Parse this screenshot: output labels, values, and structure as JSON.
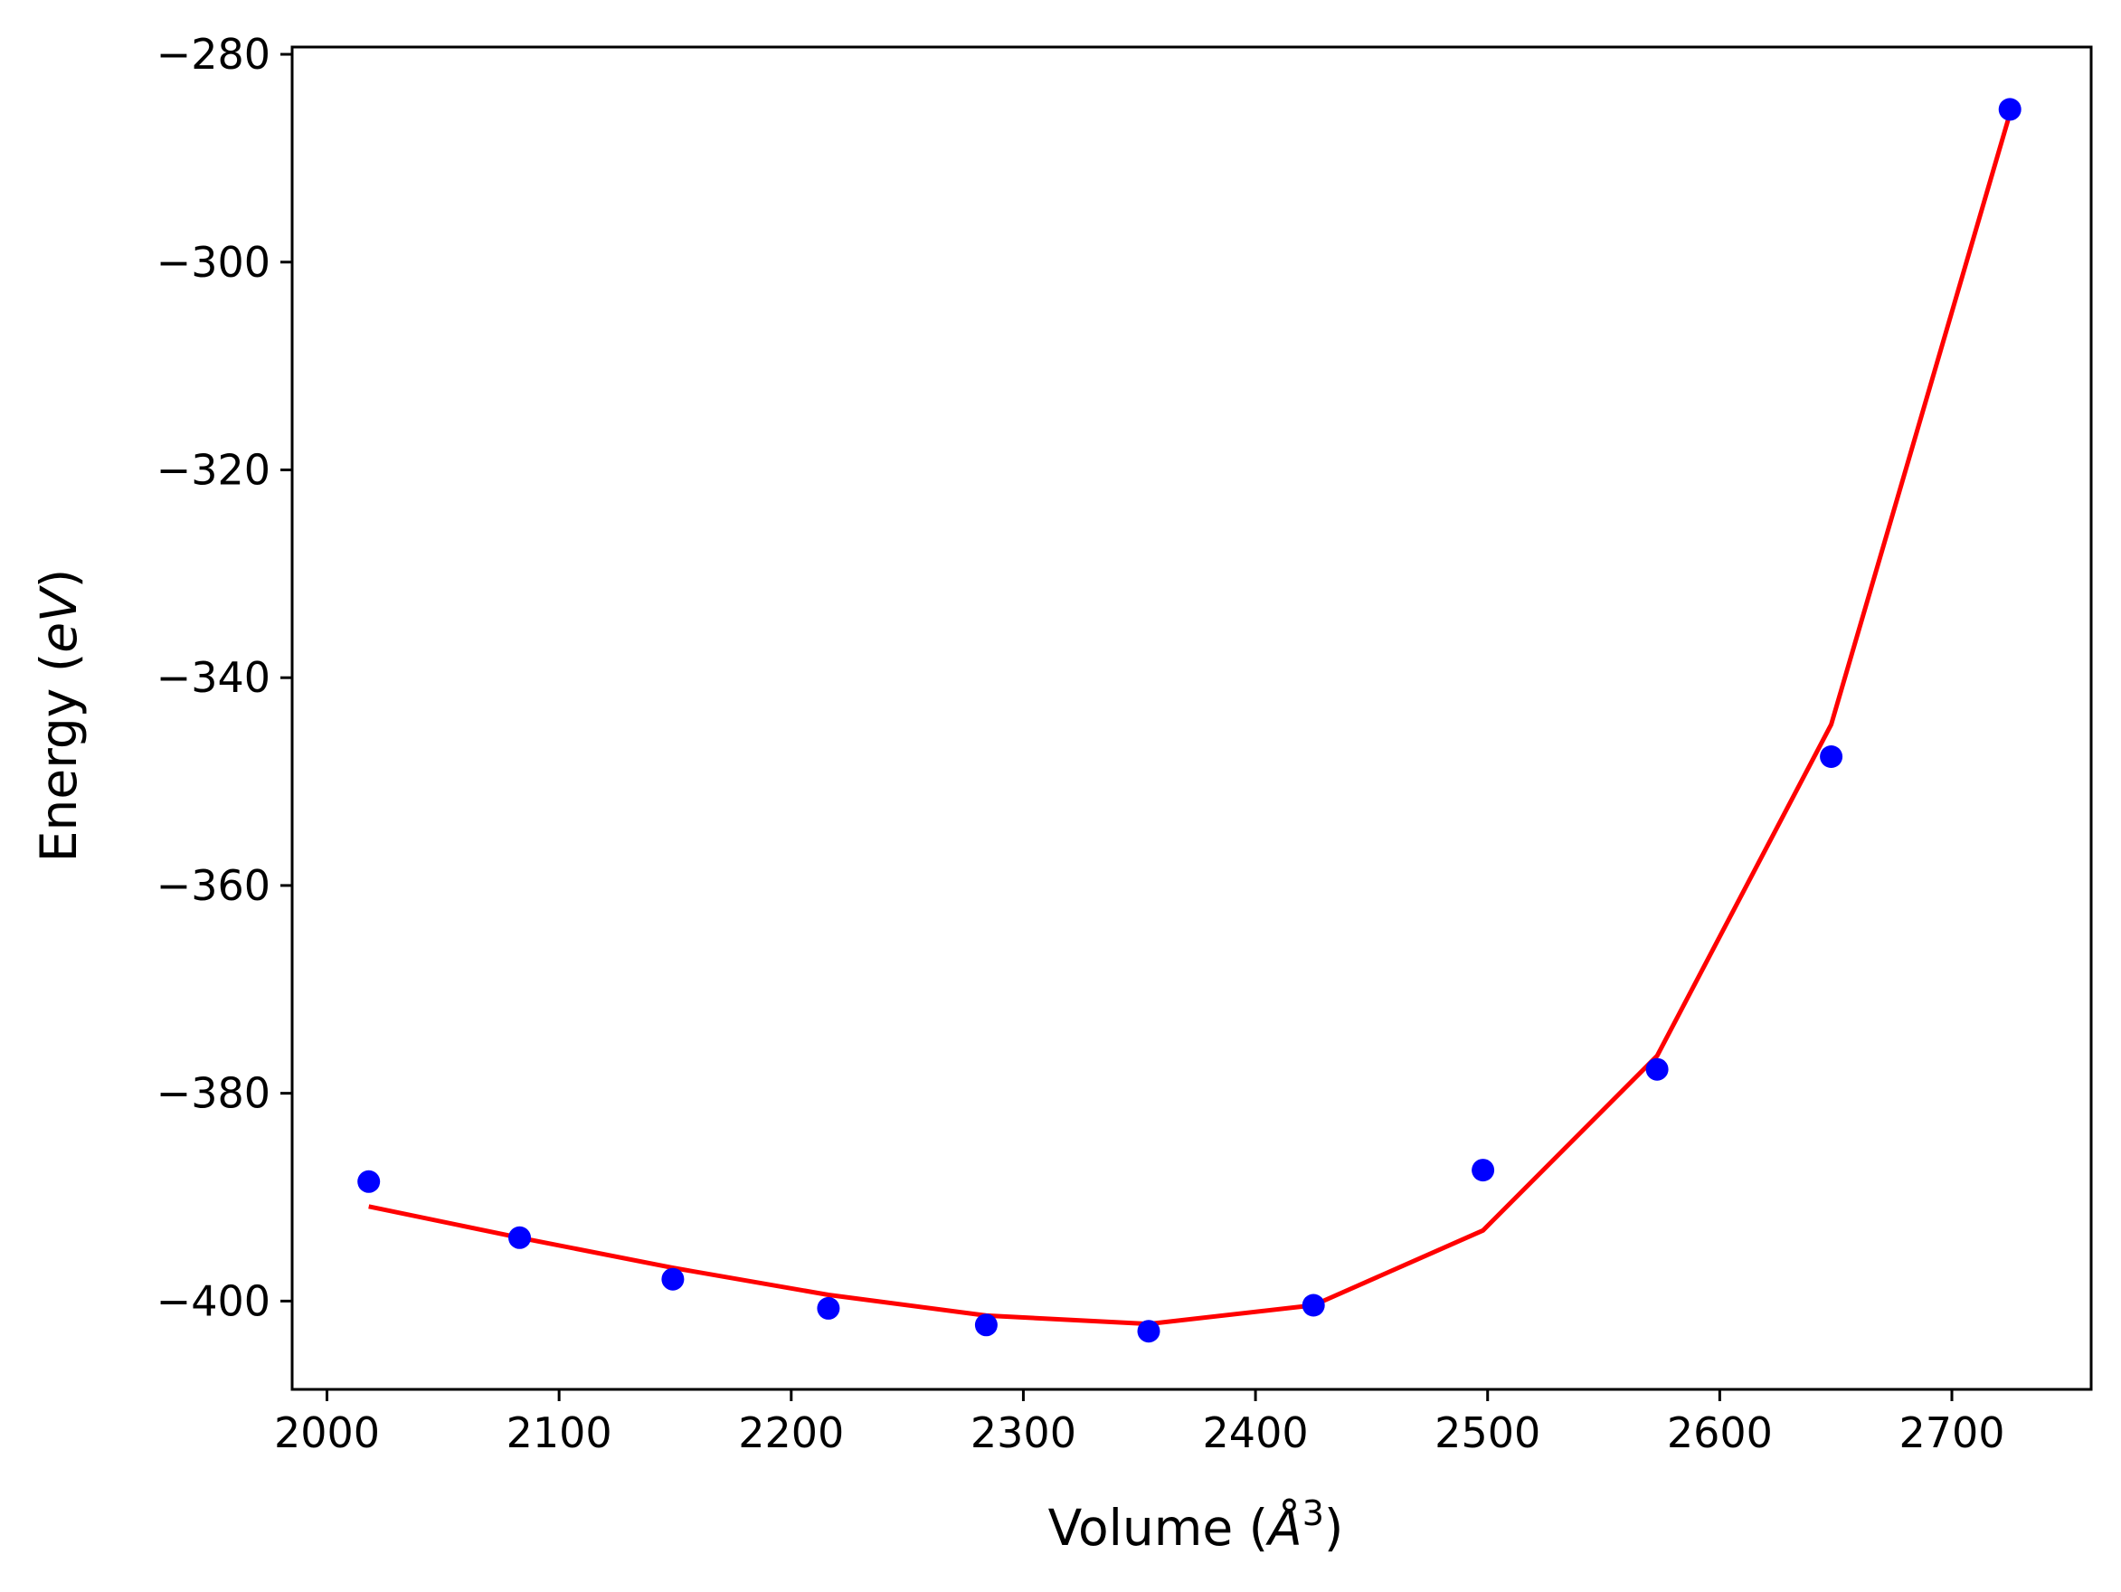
{
  "chart_data": {
    "type": "scatter",
    "title": "",
    "xlabel": {
      "prefix": "Volume (",
      "symbol": "Å",
      "superscript": "3",
      "suffix": ")"
    },
    "ylabel": {
      "prefix": "Energy (",
      "symbol": "eV",
      "suffix": ")"
    },
    "xlim": [
      1985,
      2760
    ],
    "ylim": [
      -408.5,
      -279.3
    ],
    "x_ticks": [
      2000,
      2100,
      2200,
      2300,
      2400,
      2500,
      2600,
      2700
    ],
    "x_tick_labels": [
      "2000",
      "2100",
      "2200",
      "2300",
      "2400",
      "2500",
      "2600",
      "2700"
    ],
    "y_ticks": [
      -280,
      -300,
      -320,
      -340,
      -360,
      -380,
      -400
    ],
    "y_tick_labels": [
      "−280",
      "−300",
      "−320",
      "−340",
      "−360",
      "−380",
      "−400"
    ],
    "grid": false,
    "legend": "none",
    "series": [
      {
        "kind": "points",
        "color": "#0000ff",
        "marker": "circle",
        "x": [
          2018,
          2083,
          2149,
          2216,
          2284,
          2354,
          2425,
          2498,
          2573,
          2648,
          2725
        ],
        "y": [
          -388.5,
          -393.9,
          -397.9,
          -400.7,
          -402.3,
          -402.9,
          -400.4,
          -387.4,
          -377.7,
          -347.6,
          -285.3
        ]
      },
      {
        "kind": "fit-line",
        "color": "#ff0000",
        "x": [
          2018,
          2083,
          2149,
          2216,
          2284,
          2354,
          2425,
          2498,
          2573,
          2648,
          2725
        ],
        "y": [
          -390.9,
          -393.9,
          -396.8,
          -399.4,
          -401.4,
          -402.2,
          -400.4,
          -393.2,
          -376.4,
          -344.5,
          -285.7
        ]
      }
    ]
  }
}
